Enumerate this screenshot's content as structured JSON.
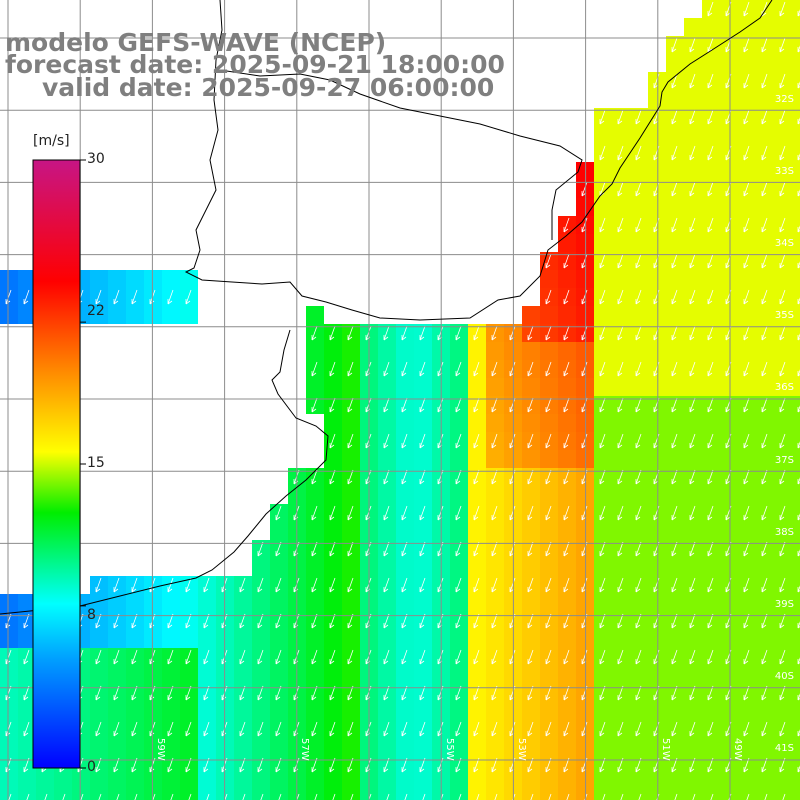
{
  "title": {
    "model": "modelo GEFS-WAVE (NCEP)",
    "forecast_date": "forecast date: 2025-09-21 18:00:00",
    "valid_date": "valid date: 2025-09-27 06:00:00"
  },
  "colorbar": {
    "unit": "[m/s]",
    "ticks": [
      {
        "value": 30,
        "label": "30"
      },
      {
        "value": 22,
        "label": "22"
      },
      {
        "value": 15,
        "label": "15"
      },
      {
        "value": 8,
        "label": "8"
      },
      {
        "value": 0,
        "label": "0"
      }
    ],
    "colors": [
      "#0000ff",
      "#00c8ff",
      "#00ffff",
      "#00ff00",
      "#ffff00",
      "#ffa500",
      "#ff0000",
      "#c71585"
    ]
  },
  "lat_labels": [
    "32S",
    "33S",
    "34S",
    "35S",
    "36S",
    "37S",
    "38S",
    "39S",
    "40S",
    "41S"
  ],
  "lon_labels": [
    "59W",
    "57W",
    "55W",
    "53W",
    "51W",
    "49W"
  ],
  "map": {
    "land_color": "#ffffff",
    "grid_color": "#8c8c8c",
    "coast_color": "#000000",
    "arrow_color": "#ffffff",
    "wind_direction": "toward south-southwest"
  }
}
